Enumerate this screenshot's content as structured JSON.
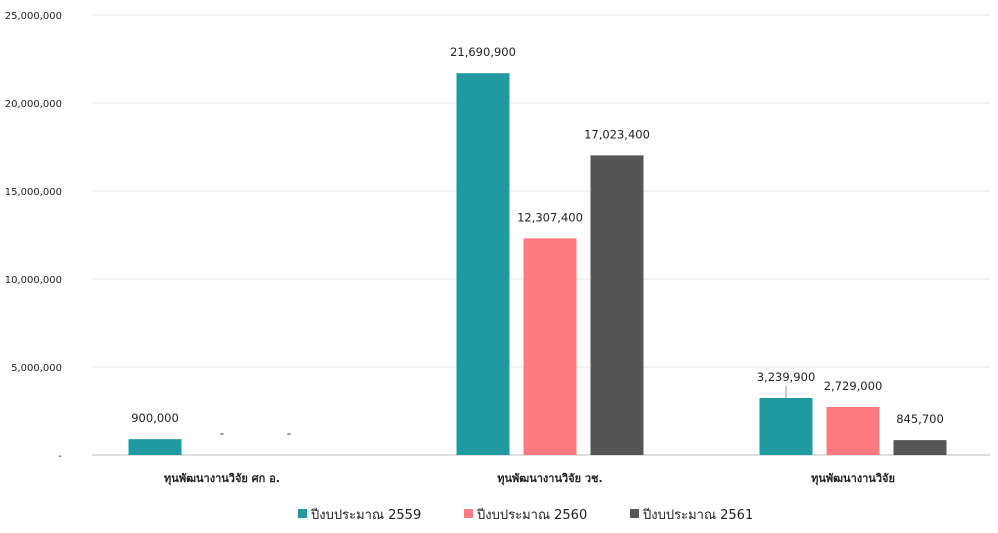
{
  "chart_data": {
    "type": "bar",
    "categories": [
      "ทุนพัฒนางานวิจัย ศก อ.",
      "ทุนพัฒนางานวิจัย วช.",
      "ทุนพัฒนางานวิจัย"
    ],
    "series": [
      {
        "name": "ปีงบประมาณ 2559",
        "color": "#1e9aa0",
        "values": [
          900000,
          21690900,
          3239900
        ],
        "labels": [
          "900,000",
          "21,690,900",
          "3,239,900"
        ]
      },
      {
        "name": "ปีงบประมาณ 2560",
        "color": "#ff7b7f",
        "values": [
          0,
          12307400,
          2729000
        ],
        "labels": [
          "-",
          "12,307,400",
          "2,729,000"
        ]
      },
      {
        "name": "ปีงบประมาณ 2561",
        "color": "#555555",
        "values": [
          0,
          17023400,
          845700
        ],
        "labels": [
          "-",
          "17,023,400",
          "845,700"
        ]
      }
    ],
    "y_ticks": [
      {
        "value": 0,
        "label": "-"
      },
      {
        "value": 5000000,
        "label": "5,000,000"
      },
      {
        "value": 10000000,
        "label": "10,000,000"
      },
      {
        "value": 15000000,
        "label": "15,000,000"
      },
      {
        "value": 20000000,
        "label": "20,000,000"
      },
      {
        "value": 25000000,
        "label": "25,000,000"
      }
    ],
    "ylim": [
      0,
      25000000
    ],
    "grid": true,
    "legend_position": "bottom"
  }
}
